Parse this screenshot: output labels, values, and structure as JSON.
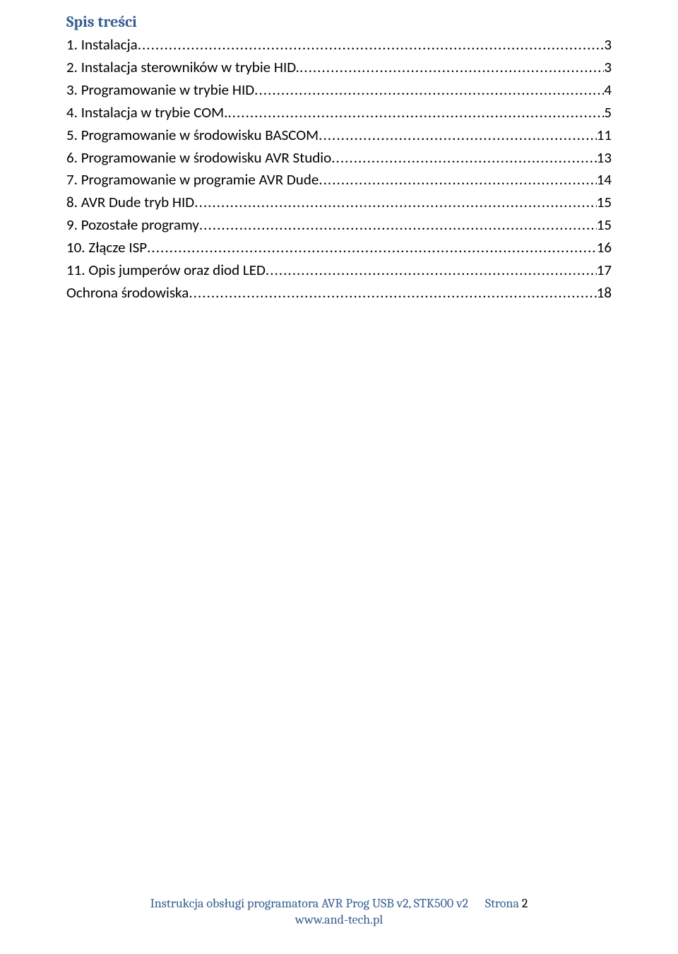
{
  "heading": "Spis treści",
  "toc": [
    {
      "label": "1.  Instalacja",
      "page": "3"
    },
    {
      "label": "2.  Instalacja sterowników w trybie HID. ",
      "page": "3"
    },
    {
      "label": "3.  Programowanie w trybie HID",
      "page": "4"
    },
    {
      "label": "4.  Instalacja w trybie COM. ",
      "page": "5"
    },
    {
      "label": "5.  Programowanie w środowisku BASCOM",
      "page": "11"
    },
    {
      "label": "6.  Programowanie w środowisku AVR Studio ",
      "page": "13"
    },
    {
      "label": "7.  Programowanie w programie AVR Dude",
      "page": "14"
    },
    {
      "label": "8.  AVR Dude tryb HID",
      "page": "15"
    },
    {
      "label": "9.  Pozostałe programy",
      "page": "15"
    },
    {
      "label": "10. Złącze ISP",
      "page": "16"
    },
    {
      "label": "11. Opis jumperów oraz diod LED",
      "page": "17"
    },
    {
      "label": "Ochrona środowiska",
      "page": "18"
    }
  ],
  "footer": {
    "line1_prefix": "Instrukcja obsługi programatora AVR Prog USB v2, STK500 v2",
    "line1_label": "Strona",
    "page_number": "2",
    "line2": "www.and-tech.pl"
  }
}
